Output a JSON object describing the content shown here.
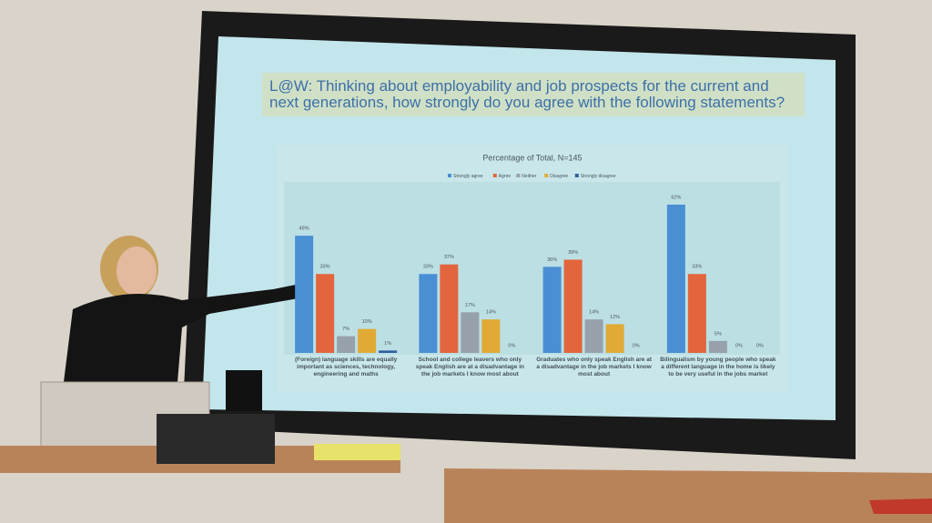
{
  "chart_data": {
    "type": "bar",
    "title": "L@W: Thinking about employability and job prospects for the current and next generations, how strongly do you agree with the following statements?",
    "subtitle": "Percentage of Total, N=145",
    "categories": [
      "(Foreign) language skills are equally important as sciences, technology, engineering and maths",
      "School and college leavers who only speak English are at a disadvantage in the job markets I know most about",
      "Graduates who only speak English are at a disadvantage in the job markets I know most about",
      "Bilingualism by young people who speak a different language in the home is likely to be very useful in the jobs market"
    ],
    "series": [
      {
        "name": "Strongly agree",
        "color": "#4a8fd3",
        "values": [
          49,
          33,
          36,
          62
        ],
        "value_labels": [
          "49%",
          "33%",
          "36%",
          "62%"
        ]
      },
      {
        "name": "Agree",
        "color": "#e2653d",
        "values": [
          33,
          37,
          39,
          33
        ],
        "value_labels": [
          "33%",
          "37%",
          "39%",
          "33%"
        ]
      },
      {
        "name": "Neither",
        "color": "#97a1ab",
        "values": [
          7,
          17,
          14,
          5
        ],
        "value_labels": [
          "7%",
          "17%",
          "14%",
          "5%"
        ]
      },
      {
        "name": "Disagree",
        "color": "#e0aa35",
        "values": [
          10,
          14,
          12,
          0
        ],
        "value_labels": [
          "10%",
          "14%",
          "12%",
          "0%"
        ]
      },
      {
        "name": "Strongly disagree",
        "color": "#2f5f9e",
        "values": [
          1,
          0,
          0,
          0
        ],
        "value_labels": [
          "1%",
          "0%",
          "0%",
          "0%"
        ]
      }
    ],
    "legend": "top"
  }
}
